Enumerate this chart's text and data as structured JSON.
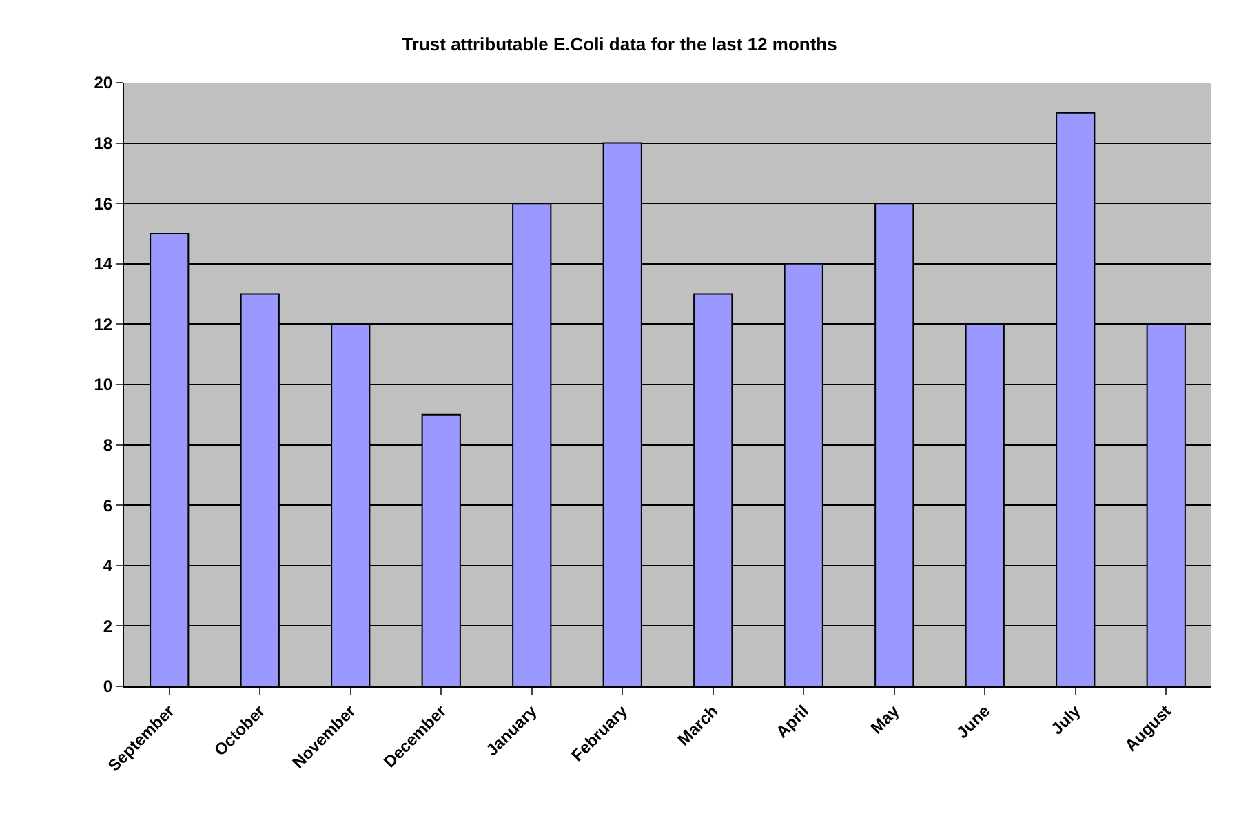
{
  "chart_data": {
    "type": "bar",
    "title": "Trust attributable E.Coli data for the last 12 months",
    "categories": [
      "September",
      "October",
      "November",
      "December",
      "January",
      "February",
      "March",
      "April",
      "May",
      "June",
      "July",
      "August"
    ],
    "values": [
      15,
      13,
      12,
      9,
      16,
      18,
      13,
      14,
      16,
      12,
      19,
      12
    ],
    "color": "#9999ff",
    "ylim": [
      0,
      20
    ],
    "yticks": [
      0,
      2,
      4,
      6,
      8,
      10,
      12,
      14,
      16,
      18,
      20
    ],
    "grid": "y"
  }
}
